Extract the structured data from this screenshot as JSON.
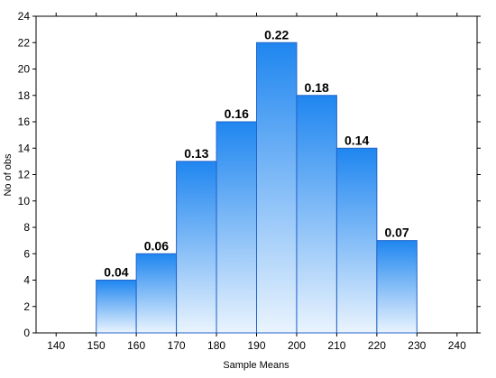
{
  "chart_data": {
    "type": "bar",
    "xlabel": "Sample Means",
    "ylabel": "No of obs",
    "xlim": [
      135,
      245
    ],
    "ylim": [
      0,
      24
    ],
    "x_ticks": [
      140,
      150,
      160,
      170,
      180,
      190,
      200,
      210,
      220,
      230,
      240
    ],
    "y_ticks": [
      0,
      2,
      4,
      6,
      8,
      10,
      12,
      14,
      16,
      18,
      20,
      22,
      24
    ],
    "bins": [
      {
        "from": 150,
        "to": 160,
        "count": 4,
        "label": "0.04"
      },
      {
        "from": 160,
        "to": 170,
        "count": 6,
        "label": "0.06"
      },
      {
        "from": 170,
        "to": 180,
        "count": 13,
        "label": "0.13"
      },
      {
        "from": 180,
        "to": 190,
        "count": 16,
        "label": "0.16"
      },
      {
        "from": 190,
        "to": 200,
        "count": 22,
        "label": "0.22"
      },
      {
        "from": 200,
        "to": 210,
        "count": 18,
        "label": "0.18"
      },
      {
        "from": 210,
        "to": 220,
        "count": 14,
        "label": "0.14"
      },
      {
        "from": 220,
        "to": 230,
        "count": 7,
        "label": "0.07"
      }
    ],
    "grid": false,
    "colors": {
      "bar_top": "#1f86f0",
      "bar_bottom": "#eaf4fe",
      "bar_edge": "#2463c9"
    }
  }
}
